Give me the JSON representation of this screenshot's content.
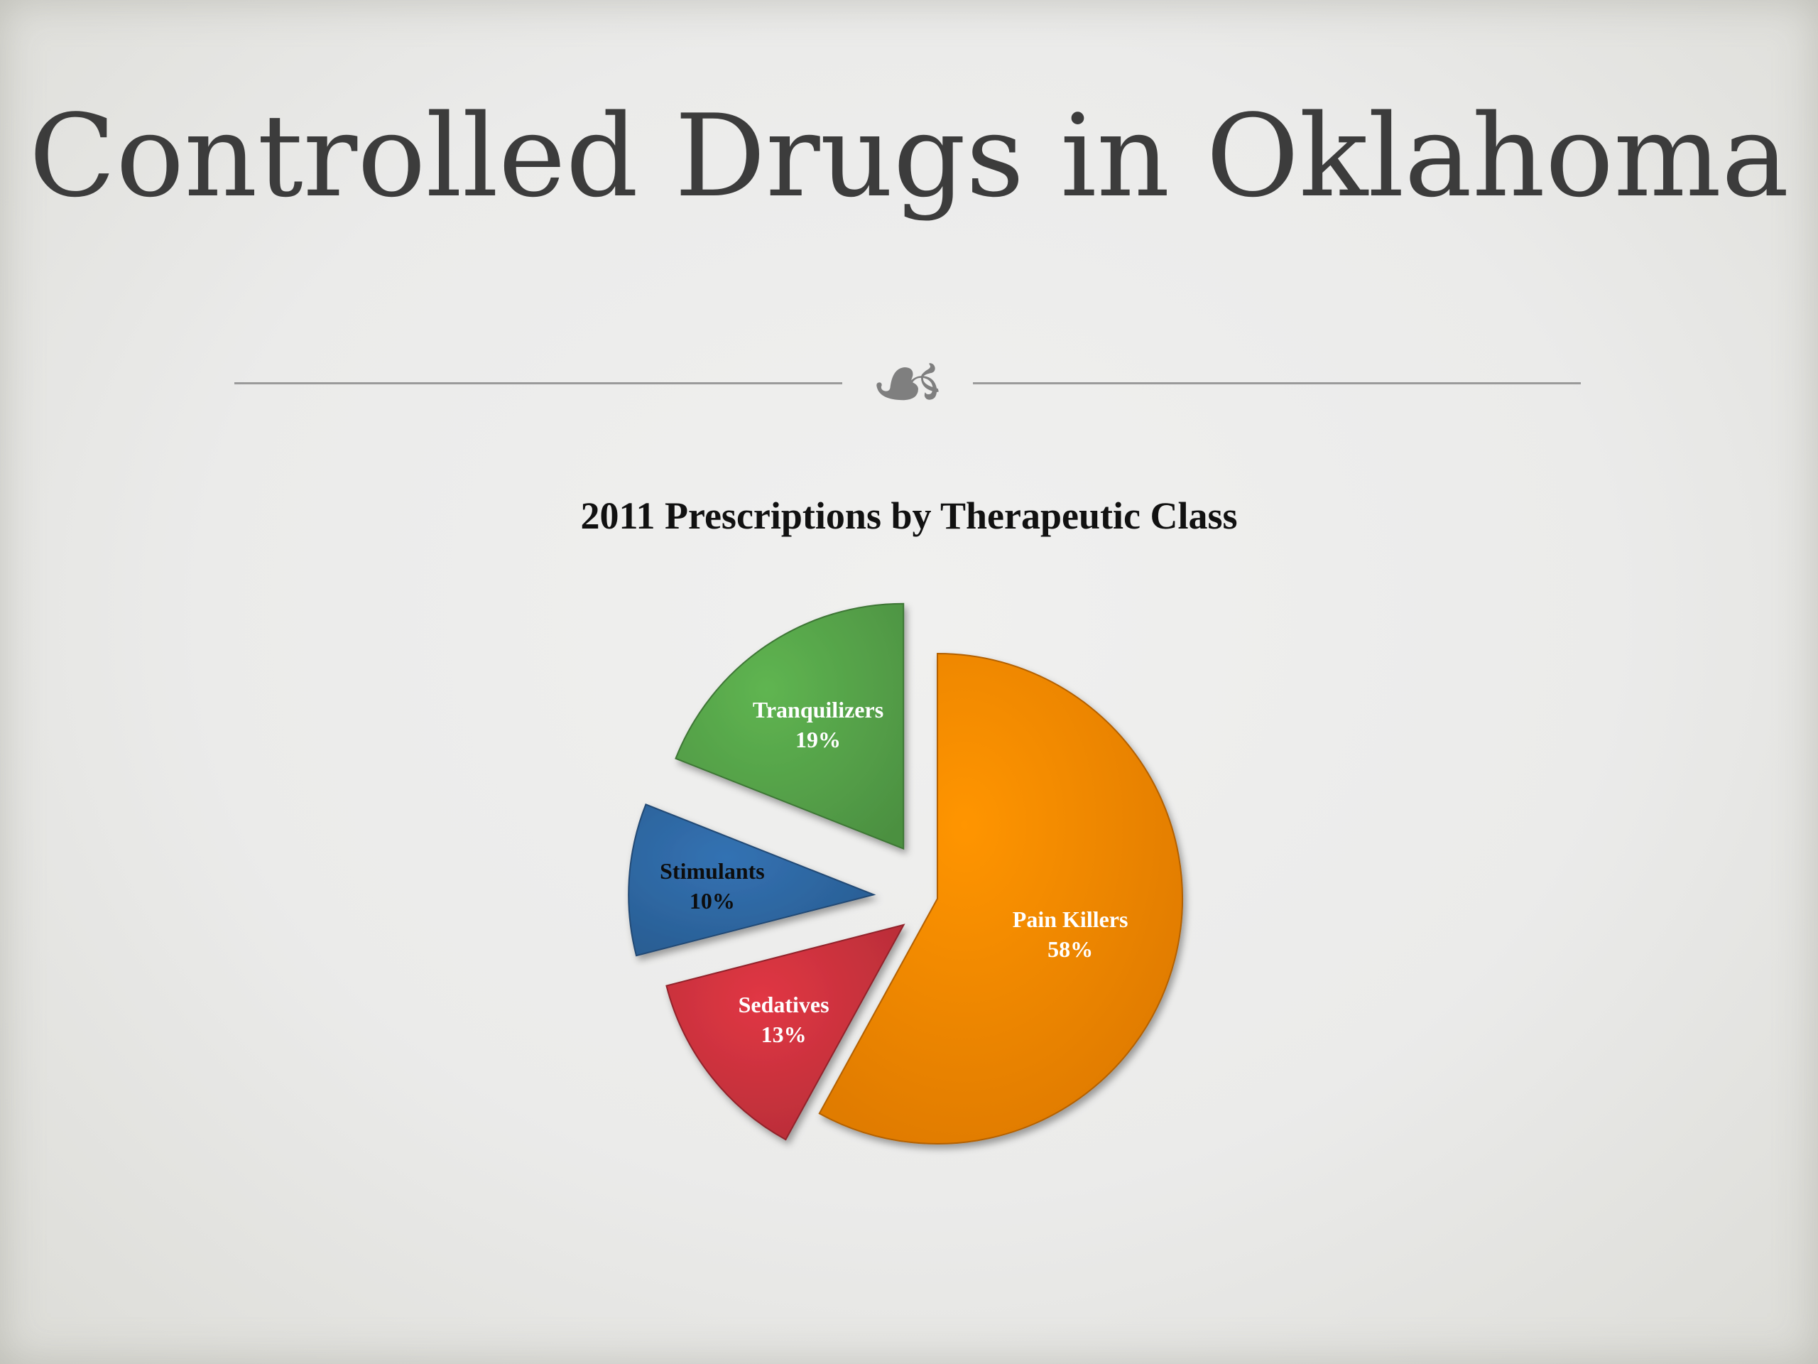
{
  "slide": {
    "title": "Controlled Drugs in Oklahoma",
    "ornament": "☙"
  },
  "chart_data": {
    "type": "pie",
    "title": "2011 Prescriptions by Therapeutic Class",
    "slices": [
      {
        "label": "Pain Killers",
        "value": 58,
        "value_text": "58%",
        "color": "#ff8a00",
        "label_color": "#ffffff"
      },
      {
        "label": "Sedatives",
        "value": 13,
        "value_text": "13%",
        "color": "#d0333f",
        "label_color": "#ffffff"
      },
      {
        "label": "Stimulants",
        "value": 10,
        "value_text": "10%",
        "color": "#2f6aa6",
        "label_color": "#0d0d0d"
      },
      {
        "label": "Tranquilizers",
        "value": 19,
        "value_text": "19%",
        "color": "#58a84b",
        "label_color": "#ffffff"
      }
    ],
    "start_angle_deg": 0,
    "direction": "clockwise",
    "exploded": true
  }
}
